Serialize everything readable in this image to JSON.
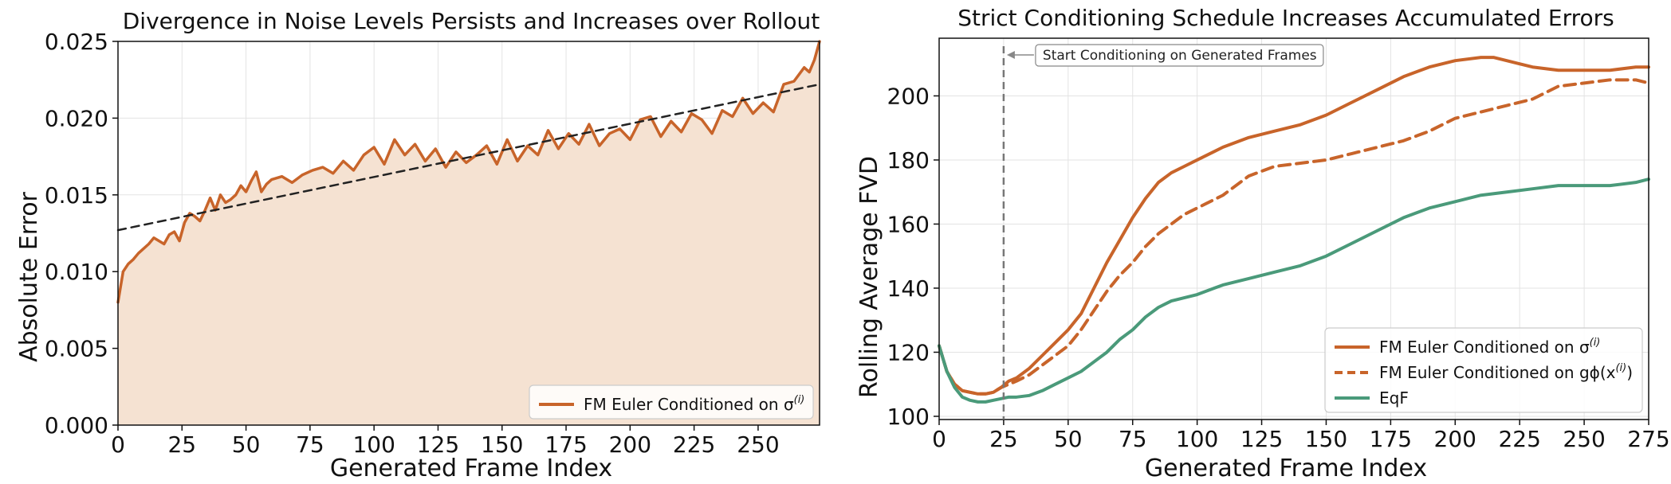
{
  "colors": {
    "fm": "#c8642a",
    "eqf": "#4a9a7a",
    "fill": "#f5e2d2",
    "trend": "#222222",
    "vline": "#777777",
    "grid": "#e3e3e3"
  },
  "chart_data": [
    {
      "type": "line",
      "title": "Divergence in Noise Levels Persists and Increases over Rollout",
      "xlabel": "Generated Frame Index",
      "ylabel": "Absolute Error",
      "xlim": [
        0,
        274
      ],
      "ylim": [
        0,
        0.025
      ],
      "xticks": [
        "0",
        "25",
        "50",
        "75",
        "100",
        "125",
        "150",
        "175",
        "200",
        "225",
        "250"
      ],
      "yticks": [
        "0.000",
        "0.005",
        "0.010",
        "0.015",
        "0.020",
        "0.025"
      ],
      "grid": true,
      "legend_position": "bottom-right",
      "legend": [
        {
          "label": "FM Euler Conditioned on σ",
          "sup": "(i)"
        }
      ],
      "series": [
        {
          "name": "FM Euler Conditioned on σ(i)",
          "x": [
            0,
            2,
            4,
            6,
            8,
            10,
            12,
            14,
            16,
            18,
            20,
            22,
            24,
            26,
            28,
            30,
            32,
            34,
            36,
            38,
            40,
            42,
            44,
            46,
            48,
            50,
            52,
            54,
            56,
            58,
            60,
            64,
            68,
            72,
            76,
            80,
            84,
            88,
            92,
            96,
            100,
            104,
            108,
            112,
            116,
            120,
            124,
            128,
            132,
            136,
            140,
            144,
            148,
            152,
            156,
            160,
            164,
            168,
            172,
            176,
            180,
            184,
            188,
            192,
            196,
            200,
            204,
            208,
            212,
            216,
            220,
            224,
            228,
            232,
            236,
            240,
            244,
            248,
            252,
            256,
            260,
            264,
            268,
            270,
            272,
            274
          ],
          "y": [
            0.008,
            0.01,
            0.0105,
            0.0108,
            0.0112,
            0.0115,
            0.0118,
            0.0122,
            0.012,
            0.0118,
            0.0124,
            0.0126,
            0.012,
            0.0132,
            0.0138,
            0.0136,
            0.0133,
            0.014,
            0.0148,
            0.014,
            0.015,
            0.0145,
            0.0147,
            0.015,
            0.0156,
            0.0152,
            0.0159,
            0.0165,
            0.0152,
            0.0157,
            0.016,
            0.0162,
            0.0158,
            0.0163,
            0.0166,
            0.0168,
            0.0164,
            0.0172,
            0.0166,
            0.0176,
            0.0181,
            0.017,
            0.0186,
            0.0176,
            0.0183,
            0.0172,
            0.018,
            0.0168,
            0.0178,
            0.0171,
            0.0176,
            0.0182,
            0.017,
            0.0186,
            0.0172,
            0.0182,
            0.0176,
            0.0192,
            0.018,
            0.019,
            0.0183,
            0.0196,
            0.0182,
            0.019,
            0.0193,
            0.0186,
            0.0199,
            0.0201,
            0.0188,
            0.0198,
            0.0191,
            0.0203,
            0.0199,
            0.019,
            0.0205,
            0.0201,
            0.0213,
            0.0203,
            0.021,
            0.0204,
            0.0222,
            0.0224,
            0.0233,
            0.023,
            0.0238,
            0.025
          ],
          "fill_under": true
        },
        {
          "name": "linear trend",
          "x": [
            0,
            274
          ],
          "y": [
            0.0127,
            0.0222
          ],
          "style": "dashed"
        }
      ]
    },
    {
      "type": "line",
      "title": "Strict Conditioning Schedule Increases Accumulated Errors",
      "xlabel": "Generated Frame Index",
      "ylabel": "Rolling Average FVD",
      "xlim": [
        0,
        275
      ],
      "ylim": [
        99,
        218
      ],
      "xticks": [
        "0",
        "25",
        "50",
        "75",
        "100",
        "125",
        "150",
        "175",
        "200",
        "225",
        "250",
        "275"
      ],
      "yticks": [
        "100",
        "120",
        "140",
        "160",
        "180",
        "200"
      ],
      "grid": true,
      "legend_position": "bottom-right",
      "legend": [
        {
          "label": "FM Euler Conditioned on σ",
          "sup": "(i)"
        },
        {
          "label": "FM Euler Conditioned on gϕ(x",
          "sup": "(i)",
          "suffix": ")"
        },
        {
          "label": "EqF",
          "sup": ""
        }
      ],
      "annotation": {
        "text": "Start Conditioning on Generated Frames",
        "x": 25
      },
      "series": [
        {
          "name": "FM Euler Conditioned on σ(i)",
          "x": [
            0,
            3,
            6,
            9,
            12,
            15,
            18,
            21,
            24,
            27,
            30,
            35,
            40,
            45,
            50,
            55,
            60,
            65,
            70,
            75,
            80,
            85,
            90,
            95,
            100,
            110,
            120,
            130,
            140,
            150,
            160,
            170,
            180,
            190,
            200,
            210,
            215,
            220,
            230,
            240,
            250,
            260,
            270,
            275
          ],
          "y": [
            122,
            114,
            110,
            108,
            107.5,
            107,
            107,
            107.5,
            109,
            111,
            112,
            115,
            119,
            123,
            127,
            132,
            140,
            148,
            155,
            162,
            168,
            173,
            176,
            178,
            180,
            184,
            187,
            189,
            191,
            194,
            198,
            202,
            206,
            209,
            211,
            212,
            212,
            211,
            209,
            208,
            208,
            208,
            209,
            209
          ],
          "style": "solid"
        },
        {
          "name": "FM Euler Conditioned on gϕ(x(i))",
          "x": [
            0,
            3,
            6,
            9,
            12,
            15,
            18,
            21,
            24,
            27,
            30,
            35,
            40,
            45,
            50,
            55,
            60,
            65,
            70,
            75,
            80,
            85,
            90,
            95,
            100,
            110,
            120,
            130,
            140,
            150,
            160,
            170,
            180,
            190,
            200,
            210,
            220,
            230,
            240,
            250,
            260,
            270,
            275
          ],
          "y": [
            122,
            114,
            110,
            108,
            107.5,
            107,
            107,
            107.5,
            109,
            110,
            111,
            113,
            116,
            119,
            122,
            127,
            133,
            139,
            144,
            148,
            153,
            157,
            160,
            163,
            165,
            169,
            175,
            178,
            179,
            180,
            182,
            184,
            186,
            189,
            193,
            195,
            197,
            199,
            203,
            204,
            205,
            205,
            204
          ],
          "style": "dashed"
        },
        {
          "name": "EqF",
          "x": [
            0,
            3,
            6,
            9,
            12,
            15,
            18,
            21,
            24,
            27,
            30,
            35,
            40,
            45,
            50,
            55,
            60,
            65,
            70,
            75,
            80,
            85,
            90,
            95,
            100,
            110,
            120,
            130,
            140,
            150,
            160,
            170,
            180,
            190,
            200,
            210,
            220,
            230,
            240,
            250,
            260,
            270,
            275
          ],
          "y": [
            122,
            114,
            109,
            106,
            105,
            104.5,
            104.5,
            105,
            105.5,
            106,
            106,
            106.5,
            108,
            110,
            112,
            114,
            117,
            120,
            124,
            127,
            131,
            134,
            136,
            137,
            138,
            141,
            143,
            145,
            147,
            150,
            154,
            158,
            162,
            165,
            167,
            169,
            170,
            171,
            172,
            172,
            172,
            173,
            174
          ],
          "style": "solid"
        }
      ]
    }
  ]
}
